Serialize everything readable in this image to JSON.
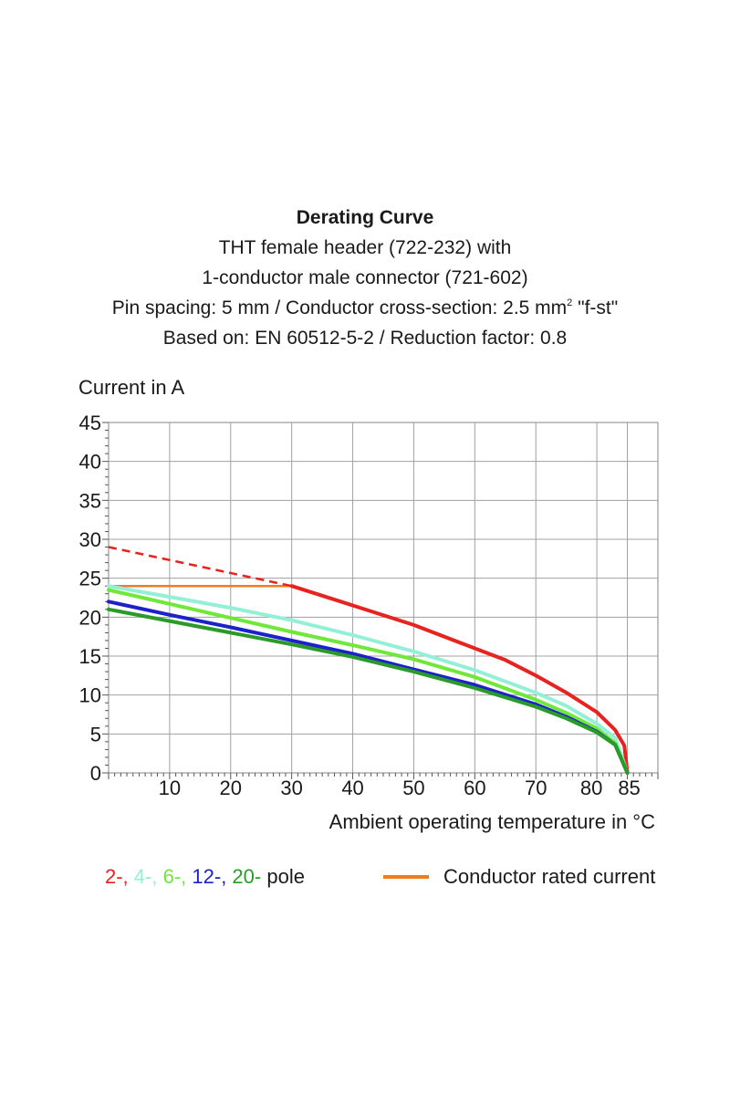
{
  "heading": {
    "title": "Derating Curve",
    "line1": "THT female header  (722-232) with",
    "line2": "1-conductor male connector (721-602)",
    "line3_prefix": "Pin spacing: 5 mm / Conductor cross-section: 2.5 mm",
    "line3_sup": "2",
    "line3_suffix": " \"f-st\"",
    "line4": "Based on: EN 60512-5-2 / Reduction factor: 0.8"
  },
  "legend": {
    "poles": [
      {
        "text": "2-,",
        "color": "#e8221f"
      },
      {
        "text": " 4-,",
        "color": "#93f0d6"
      },
      {
        "text": " 6-,",
        "color": "#6fe83a"
      },
      {
        "text": " 12-,",
        "color": "#1c22c9"
      },
      {
        "text": " 20-",
        "color": "#2a9a28"
      },
      {
        "text": " pole",
        "color": "#1a1a1a"
      }
    ],
    "rated_label": "Conductor rated current",
    "rated_color": "#f07d1a"
  },
  "chart_data": {
    "type": "line",
    "title": "",
    "ylabel": "Current in A",
    "xlabel": "Ambient operating temperature in °C",
    "xlim": [
      0,
      90
    ],
    "ylim": [
      0,
      45
    ],
    "x_ticks": [
      10,
      20,
      30,
      40,
      50,
      60,
      70,
      80,
      85
    ],
    "y_ticks": [
      0,
      5,
      10,
      15,
      20,
      25,
      30,
      35,
      40,
      45
    ],
    "grid": true,
    "series": [
      {
        "color": "#e8221f",
        "dashed_segment": [
          [
            0,
            29
          ],
          [
            30,
            24
          ]
        ],
        "points": [
          [
            30,
            24
          ],
          [
            40,
            21.5
          ],
          [
            50,
            19
          ],
          [
            60,
            16
          ],
          [
            65,
            14.5
          ],
          [
            70,
            12.5
          ],
          [
            75,
            10.3
          ],
          [
            80,
            7.8
          ],
          [
            83,
            5.5
          ],
          [
            84.5,
            3.5
          ],
          [
            85,
            0
          ]
        ]
      },
      {
        "color": "#93f0d6",
        "points": [
          [
            0,
            24
          ],
          [
            10,
            22.6
          ],
          [
            20,
            21.2
          ],
          [
            30,
            19.6
          ],
          [
            40,
            17.7
          ],
          [
            50,
            15.6
          ],
          [
            60,
            13.2
          ],
          [
            70,
            10.3
          ],
          [
            75,
            8.6
          ],
          [
            80,
            6.3
          ],
          [
            83,
            4.5
          ],
          [
            85,
            0
          ]
        ]
      },
      {
        "color": "#6fe83a",
        "points": [
          [
            0,
            23.5
          ],
          [
            10,
            21.7
          ],
          [
            20,
            19.9
          ],
          [
            30,
            18.1
          ],
          [
            40,
            16.4
          ],
          [
            50,
            14.6
          ],
          [
            60,
            12.3
          ],
          [
            70,
            9.4
          ],
          [
            75,
            7.7
          ],
          [
            80,
            5.7
          ],
          [
            83,
            3.8
          ],
          [
            85,
            0
          ]
        ]
      },
      {
        "color": "#1c22c9",
        "points": [
          [
            0,
            22
          ],
          [
            10,
            20.3
          ],
          [
            20,
            18.7
          ],
          [
            30,
            17.0
          ],
          [
            40,
            15.3
          ],
          [
            50,
            13.3
          ],
          [
            60,
            11.3
          ],
          [
            70,
            8.8
          ],
          [
            75,
            7.2
          ],
          [
            80,
            5.3
          ],
          [
            83,
            3.6
          ],
          [
            85,
            0
          ]
        ]
      },
      {
        "color": "#2a9a28",
        "points": [
          [
            0,
            21
          ],
          [
            10,
            19.5
          ],
          [
            20,
            18.0
          ],
          [
            30,
            16.5
          ],
          [
            40,
            14.9
          ],
          [
            50,
            13.0
          ],
          [
            60,
            10.9
          ],
          [
            70,
            8.5
          ],
          [
            75,
            7.0
          ],
          [
            80,
            5.2
          ],
          [
            83,
            3.6
          ],
          [
            85,
            0
          ]
        ]
      },
      {
        "color": "#f07d1a",
        "points": [
          [
            0,
            24
          ],
          [
            30,
            24
          ]
        ]
      }
    ]
  }
}
